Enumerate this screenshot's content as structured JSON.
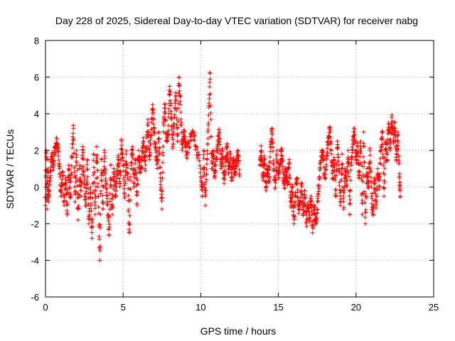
{
  "chart_data": {
    "type": "scatter",
    "title": "Day 228 of 2025, Sidereal Day-to-day VTEC variation (SDTVAR) for receiver nabg",
    "xlabel": "GPS time / hours",
    "ylabel": "SDTVAR / TECUs",
    "xlim": [
      0,
      25
    ],
    "ylim": [
      -6,
      8
    ],
    "xticks": [
      "0",
      "5",
      "10",
      "15",
      "20",
      "25"
    ],
    "yticks": [
      "8",
      "6",
      "4",
      "2",
      "0",
      "-2",
      "-4",
      "-6"
    ],
    "grid": true,
    "marker": "+",
    "series_color": "#ff0000",
    "trace": [
      [
        0.0,
        -1.0
      ],
      [
        0.05,
        2.0
      ],
      [
        0.1,
        -1.2
      ],
      [
        0.15,
        1.5
      ],
      [
        0.2,
        -0.8
      ],
      [
        0.3,
        0.5
      ],
      [
        0.4,
        1.8
      ],
      [
        0.5,
        1.2
      ],
      [
        0.6,
        2.0
      ],
      [
        0.7,
        2.4
      ],
      [
        0.8,
        2.2
      ],
      [
        0.9,
        1.0
      ],
      [
        1.0,
        -0.5
      ],
      [
        1.1,
        0.8
      ],
      [
        1.2,
        -1.0
      ],
      [
        1.3,
        0.5
      ],
      [
        1.4,
        -1.5
      ],
      [
        1.5,
        1.2
      ],
      [
        1.6,
        -0.5
      ],
      [
        1.7,
        1.6
      ],
      [
        1.8,
        3.2
      ],
      [
        1.9,
        -0.8
      ],
      [
        2.0,
        2.0
      ],
      [
        2.1,
        -1.8
      ],
      [
        2.2,
        1.0
      ],
      [
        2.3,
        -0.5
      ],
      [
        2.4,
        2.2
      ],
      [
        2.5,
        0.2
      ],
      [
        2.6,
        -1.0
      ],
      [
        2.7,
        1.5
      ],
      [
        2.8,
        -2.0
      ],
      [
        2.9,
        0.0
      ],
      [
        3.0,
        -2.8
      ],
      [
        3.1,
        1.8
      ],
      [
        3.2,
        -1.5
      ],
      [
        3.3,
        2.2
      ],
      [
        3.4,
        -0.5
      ],
      [
        3.5,
        -4.0
      ],
      [
        3.6,
        1.5
      ],
      [
        3.7,
        -1.2
      ],
      [
        3.8,
        2.0
      ],
      [
        3.9,
        0.2
      ],
      [
        4.0,
        -1.0
      ],
      [
        4.1,
        -2.6
      ],
      [
        4.2,
        1.2
      ],
      [
        4.3,
        -1.5
      ],
      [
        4.4,
        1.0
      ],
      [
        4.5,
        -0.5
      ],
      [
        4.6,
        0.5
      ],
      [
        4.7,
        1.5
      ],
      [
        4.8,
        0.2
      ],
      [
        4.9,
        2.5
      ],
      [
        5.0,
        1.2
      ],
      [
        5.1,
        -0.5
      ],
      [
        5.2,
        1.8
      ],
      [
        5.3,
        0.5
      ],
      [
        5.4,
        -2.5
      ],
      [
        5.5,
        1.0
      ],
      [
        5.6,
        2.2
      ],
      [
        5.7,
        0.0
      ],
      [
        5.8,
        1.5
      ],
      [
        5.9,
        -1.0
      ],
      [
        6.0,
        2.0
      ],
      [
        6.1,
        0.8
      ],
      [
        6.2,
        1.5
      ],
      [
        6.3,
        2.5
      ],
      [
        6.4,
        1.0
      ],
      [
        6.5,
        2.2
      ],
      [
        6.6,
        3.5
      ],
      [
        6.7,
        1.5
      ],
      [
        6.8,
        2.8
      ],
      [
        6.9,
        4.5
      ],
      [
        7.0,
        3.0
      ],
      [
        7.1,
        2.0
      ],
      [
        7.2,
        1.0
      ],
      [
        7.3,
        3.0
      ],
      [
        7.4,
        0.5
      ],
      [
        7.5,
        -1.2
      ],
      [
        7.6,
        3.5
      ],
      [
        7.7,
        4.5
      ],
      [
        7.8,
        2.5
      ],
      [
        7.9,
        3.0
      ],
      [
        8.0,
        5.5
      ],
      [
        8.1,
        4.0
      ],
      [
        8.2,
        2.2
      ],
      [
        8.3,
        3.8
      ],
      [
        8.4,
        5.0
      ],
      [
        8.5,
        2.5
      ],
      [
        8.6,
        6.0
      ],
      [
        8.7,
        4.5
      ],
      [
        8.8,
        2.0
      ],
      [
        8.9,
        3.0
      ],
      [
        9.0,
        2.5
      ],
      [
        9.1,
        1.8
      ],
      [
        9.3,
        2.5
      ],
      [
        9.5,
        3.0
      ],
      [
        9.7,
        2.2
      ],
      [
        10.0,
        1.0
      ],
      [
        10.1,
        -0.5
      ],
      [
        10.2,
        2.0
      ],
      [
        10.3,
        -1.0
      ],
      [
        10.4,
        1.5
      ],
      [
        10.5,
        3.5
      ],
      [
        10.6,
        6.2
      ],
      [
        10.7,
        1.0
      ],
      [
        10.8,
        2.0
      ],
      [
        10.9,
        0.5
      ],
      [
        11.0,
        1.5
      ],
      [
        11.1,
        2.5
      ],
      [
        11.2,
        3.0
      ],
      [
        11.3,
        1.0
      ],
      [
        11.4,
        2.0
      ],
      [
        11.5,
        0.2
      ],
      [
        11.6,
        1.5
      ],
      [
        11.7,
        2.2
      ],
      [
        11.8,
        0.8
      ],
      [
        11.9,
        1.8
      ],
      [
        12.0,
        0.5
      ],
      [
        12.1,
        1.5
      ],
      [
        12.2,
        0.8
      ],
      [
        12.3,
        1.2
      ],
      [
        12.4,
        2.0
      ],
      [
        12.5,
        0.6
      ],
      [
        13.8,
        1.2
      ],
      [
        13.9,
        2.0
      ],
      [
        14.0,
        0.5
      ],
      [
        14.1,
        1.5
      ],
      [
        14.2,
        0.0
      ],
      [
        14.3,
        1.0
      ],
      [
        14.4,
        0.5
      ],
      [
        14.5,
        2.2
      ],
      [
        14.6,
        3.2
      ],
      [
        14.7,
        1.0
      ],
      [
        14.8,
        0.0
      ],
      [
        14.9,
        1.8
      ],
      [
        15.0,
        0.5
      ],
      [
        15.1,
        1.2
      ],
      [
        15.2,
        2.0
      ],
      [
        15.3,
        0.8
      ],
      [
        15.4,
        0.2
      ],
      [
        15.5,
        1.0
      ],
      [
        15.6,
        0.3
      ],
      [
        15.7,
        1.5
      ],
      [
        15.8,
        -1.0
      ],
      [
        15.9,
        0.0
      ],
      [
        16.0,
        -2.0
      ],
      [
        16.1,
        -0.5
      ],
      [
        16.2,
        0.5
      ],
      [
        16.3,
        -1.2
      ],
      [
        16.4,
        -0.8
      ],
      [
        16.5,
        0.2
      ],
      [
        16.6,
        -1.5
      ],
      [
        16.7,
        -0.2
      ],
      [
        16.8,
        -2.0
      ],
      [
        16.9,
        -1.0
      ],
      [
        17.0,
        -1.8
      ],
      [
        17.1,
        -0.5
      ],
      [
        17.2,
        -2.5
      ],
      [
        17.3,
        -1.0
      ],
      [
        17.4,
        -2.0
      ],
      [
        17.5,
        -1.2
      ],
      [
        17.6,
        0.0
      ],
      [
        17.7,
        1.0
      ],
      [
        17.8,
        2.0
      ],
      [
        17.9,
        1.5
      ],
      [
        18.0,
        0.5
      ],
      [
        18.1,
        1.5
      ],
      [
        18.2,
        2.5
      ],
      [
        18.3,
        3.2
      ],
      [
        18.4,
        2.0
      ],
      [
        18.5,
        0.5
      ],
      [
        18.6,
        1.5
      ],
      [
        18.7,
        -0.5
      ],
      [
        18.8,
        2.5
      ],
      [
        18.9,
        1.0
      ],
      [
        19.0,
        -1.0
      ],
      [
        19.1,
        1.8
      ],
      [
        19.2,
        -1.2
      ],
      [
        19.3,
        1.0
      ],
      [
        19.4,
        0.0
      ],
      [
        19.5,
        2.0
      ],
      [
        19.6,
        -1.5
      ],
      [
        19.7,
        1.5
      ],
      [
        19.8,
        2.5
      ],
      [
        19.9,
        3.0
      ],
      [
        20.0,
        1.5
      ],
      [
        20.1,
        2.2
      ],
      [
        20.2,
        0.5
      ],
      [
        20.3,
        2.5
      ],
      [
        20.4,
        -1.5
      ],
      [
        20.5,
        3.0
      ],
      [
        20.6,
        -2.0
      ],
      [
        20.7,
        1.0
      ],
      [
        20.8,
        0.0
      ],
      [
        20.9,
        2.0
      ],
      [
        21.0,
        -0.5
      ],
      [
        21.1,
        -1.5
      ],
      [
        21.2,
        0.5
      ],
      [
        21.3,
        -1.0
      ],
      [
        21.4,
        1.0
      ],
      [
        21.5,
        0.0
      ],
      [
        21.6,
        2.0
      ],
      [
        21.7,
        3.0
      ],
      [
        21.8,
        -0.5
      ],
      [
        21.9,
        2.5
      ],
      [
        22.0,
        1.5
      ],
      [
        22.1,
        3.5
      ],
      [
        22.2,
        2.0
      ],
      [
        22.3,
        3.8
      ],
      [
        22.4,
        2.5
      ],
      [
        22.5,
        3.5
      ],
      [
        22.6,
        1.5
      ],
      [
        22.7,
        3.0
      ],
      [
        22.8,
        0.5
      ],
      [
        22.85,
        -0.5
      ]
    ]
  }
}
